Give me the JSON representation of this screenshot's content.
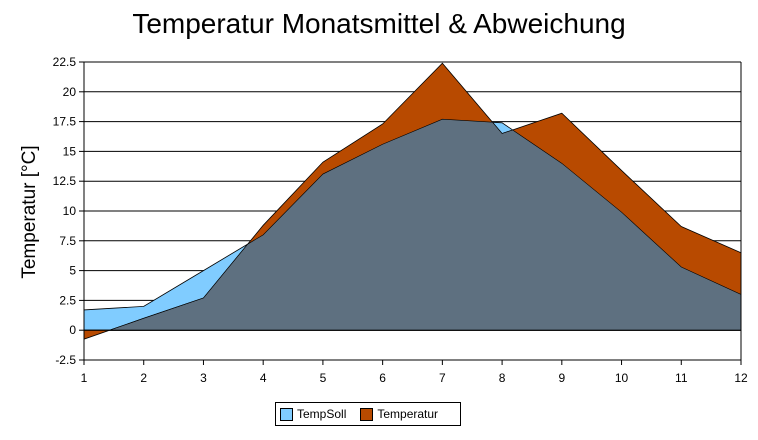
{
  "chart_data": {
    "type": "area",
    "title": "Temperatur Monatsmittel & Abweichung",
    "xlabel": "",
    "ylabel": "Temperatur [°C]",
    "categories": [
      1,
      2,
      3,
      4,
      5,
      6,
      7,
      8,
      9,
      10,
      11,
      12
    ],
    "series": [
      {
        "name": "TempSoll",
        "color": "#80CCFF",
        "values": [
          1.7,
          2.0,
          5.0,
          8.0,
          13.1,
          15.6,
          17.7,
          17.4,
          14.0,
          9.9,
          5.3,
          3.0
        ]
      },
      {
        "name": "Temperatur",
        "color": "#B84A00",
        "values": [
          -0.75,
          1.0,
          2.7,
          8.8,
          14.1,
          17.3,
          22.4,
          16.5,
          18.2,
          13.4,
          8.7,
          6.5
        ]
      }
    ],
    "overlap_color": "#5E7080",
    "ylim": [
      -2.5,
      22.5
    ],
    "yticks": [
      "-2.5",
      "0",
      "2.5",
      "5",
      "7.5",
      "10",
      "12.5",
      "15",
      "17.5",
      "20",
      "22.5"
    ],
    "xticks": [
      "1",
      "2",
      "3",
      "4",
      "5",
      "6",
      "7",
      "8",
      "9",
      "10",
      "11",
      "12"
    ],
    "grid": true,
    "legend_position": "bottom"
  }
}
